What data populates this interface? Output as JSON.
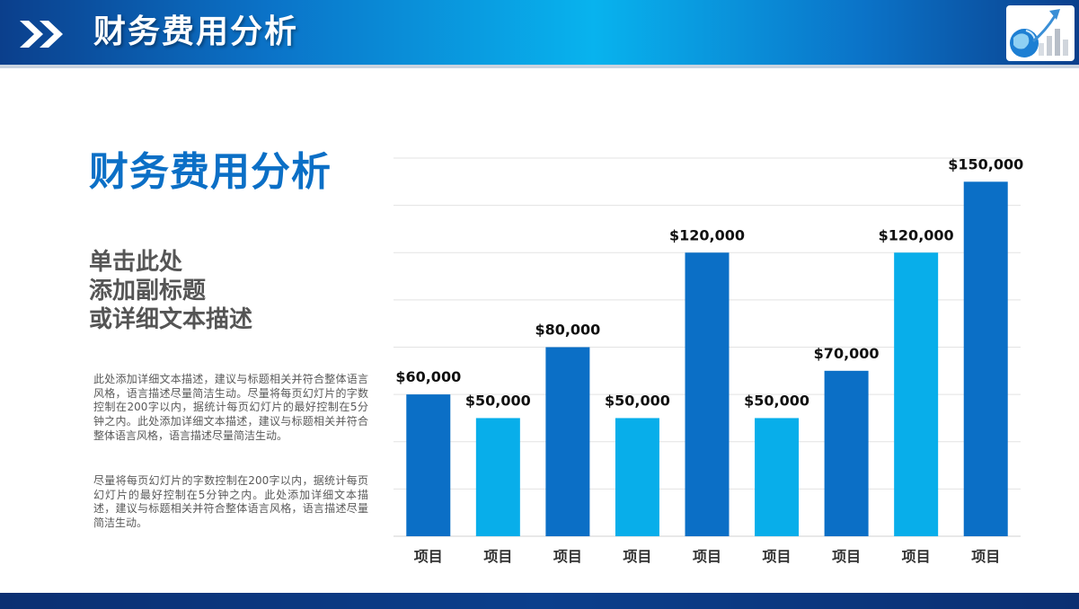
{
  "header": {
    "title": "财务费用分析"
  },
  "main": {
    "title": "财务费用分析",
    "subtitle_lines": [
      "单击此处",
      "添加副标题",
      "或详细文本描述"
    ],
    "paragraph1": "此处添加详细文本描述，建议与标题相关并符合整体语言风格，语言描述尽量简洁生动。尽量将每页幻灯片的字数控制在200字以内，据统计每页幻灯片的最好控制在5分钟之内。此处添加详细文本描述，建议与标题相关并符合整体语言风格，语言描述尽量简洁生动。",
    "paragraph2": "尽量将每页幻灯片的字数控制在200字以内，据统计每页幻灯片的最好控制在5分钟之内。此处添加详细文本描述，建议与标题相关并符合整体语言风格，语言描述尽量简洁生动。"
  },
  "chart_data": {
    "type": "bar",
    "title": "",
    "xlabel": "",
    "ylabel": "",
    "categories": [
      "项目",
      "项目",
      "项目",
      "项目",
      "项目",
      "项目",
      "项目",
      "项目",
      "项目"
    ],
    "values": [
      60000,
      50000,
      80000,
      50000,
      120000,
      50000,
      70000,
      120000,
      150000
    ],
    "data_labels": [
      "$60,000",
      "$50,000",
      "$80,000",
      "$50,000",
      "$120,000",
      "$50,000",
      "$70,000",
      "$120,000",
      "$150,000"
    ],
    "bar_colors": [
      "#0b6fc6",
      "#08aeea",
      "#0b6fc6",
      "#08aeea",
      "#0b6fc6",
      "#08aeea",
      "#0b6fc6",
      "#08aeea",
      "#0b6fc6"
    ],
    "ylim": [
      0,
      160000
    ],
    "grid": true,
    "legend": "none"
  },
  "colors": {
    "brand_blue": "#0b6fc6",
    "light_blue": "#08aeea",
    "header_dark": "#0b3f8c"
  }
}
